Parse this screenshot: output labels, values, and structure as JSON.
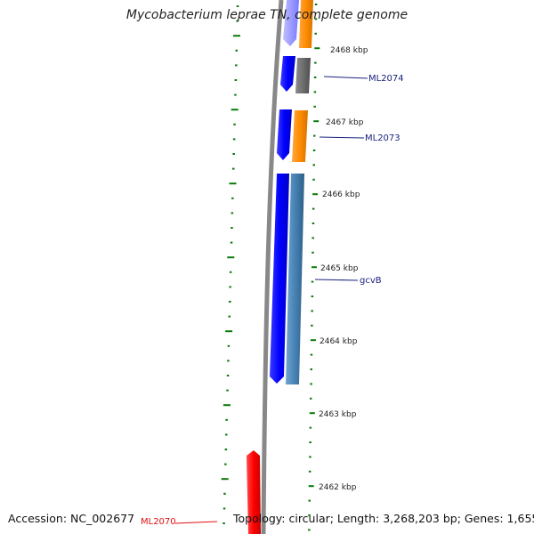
{
  "title": "Mycobacterium leprae TN, complete genome",
  "footer": {
    "accession": "Accession: NC_002677",
    "topology": "Topology: circular; Length: 3,268,203 bp; Genes: 1,655"
  },
  "ruler": {
    "unit": "kbp",
    "tick_labels": [
      "2468 kbp",
      "2467 kbp",
      "2466 kbp",
      "2465 kbp",
      "2464 kbp",
      "2463 kbp",
      "2462 kbp"
    ]
  },
  "genes": [
    {
      "label": "ML2074",
      "color": "#1a237e"
    },
    {
      "label": "ML2073",
      "color": "#1a237e"
    },
    {
      "label": "gcvB",
      "color": "#1a237e"
    },
    {
      "label": "ML2070",
      "color": "#e01010"
    }
  ],
  "colors": {
    "cds_forward": "#0a0aff",
    "cds_faded": "#9c9cff",
    "cds_orange": "#ff8c00",
    "cds_gray": "#6e6e6e",
    "cds_steelblue": "#4682b4",
    "cds_red": "#ff0000",
    "backbone": "#888888",
    "gc_dots": "#0a7a0a",
    "ticks": "#0a7a0a"
  }
}
